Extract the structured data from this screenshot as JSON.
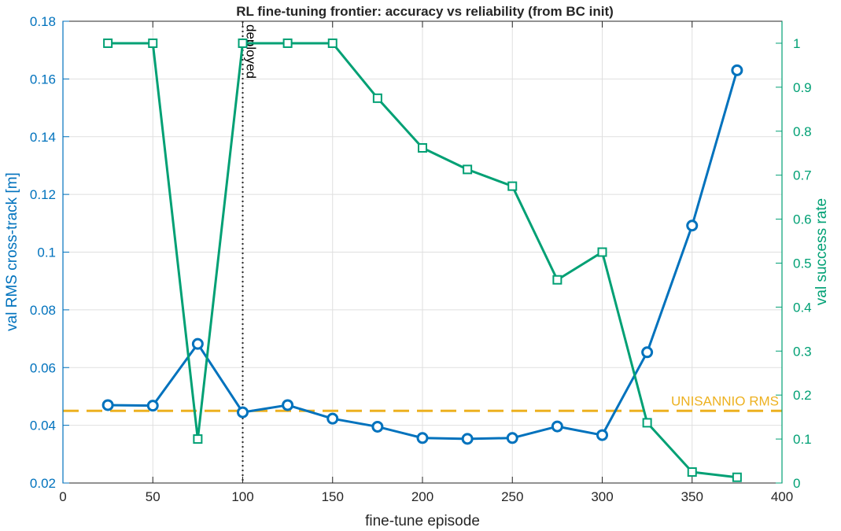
{
  "chart_data": {
    "type": "line",
    "title": "RL fine-tuning frontier: accuracy vs reliability (from BC init)",
    "xlabel": "fine-tune episode",
    "ylabel_left": "val RMS cross-track [m]",
    "ylabel_right": "val success rate",
    "xlim": [
      0,
      400
    ],
    "ylim_left": [
      0.02,
      0.18
    ],
    "ylim_right": [
      0,
      1.05
    ],
    "xticks": [
      0,
      50,
      100,
      150,
      200,
      250,
      300,
      350,
      400
    ],
    "yticks_left": [
      0.02,
      0.04,
      0.06,
      0.08,
      0.1,
      0.12,
      0.14,
      0.16,
      0.18
    ],
    "yticks_right": [
      0,
      0.1,
      0.2,
      0.3,
      0.4,
      0.5,
      0.6,
      0.7,
      0.8,
      0.9,
      1
    ],
    "grid": true,
    "x": [
      25,
      50,
      75,
      100,
      125,
      150,
      175,
      200,
      225,
      250,
      275,
      300,
      325,
      350,
      375
    ],
    "series": [
      {
        "axis": "left",
        "marker": "circle",
        "color": "#0072BD",
        "values": [
          0.047,
          0.0468,
          0.0682,
          0.0445,
          0.047,
          0.0423,
          0.0395,
          0.0356,
          0.0353,
          0.0356,
          0.0396,
          0.0366,
          0.0653,
          0.1092,
          0.163
        ]
      },
      {
        "axis": "right",
        "marker": "square",
        "color": "#00A074",
        "values": [
          1.0,
          1.0,
          0.1,
          1.0,
          1.0,
          1.0,
          0.875,
          0.762,
          0.713,
          0.675,
          0.462,
          0.525,
          0.137,
          0.025,
          0.013
        ]
      }
    ],
    "reference_lines": [
      {
        "orientation": "horizontal",
        "axis": "left",
        "value": 0.045,
        "label": "UNISANNIO RMS",
        "color": "#EDB120",
        "style": "dashed"
      },
      {
        "orientation": "vertical",
        "value": 100,
        "label": "deployed",
        "color": "#262626",
        "style": "dotted"
      }
    ]
  }
}
